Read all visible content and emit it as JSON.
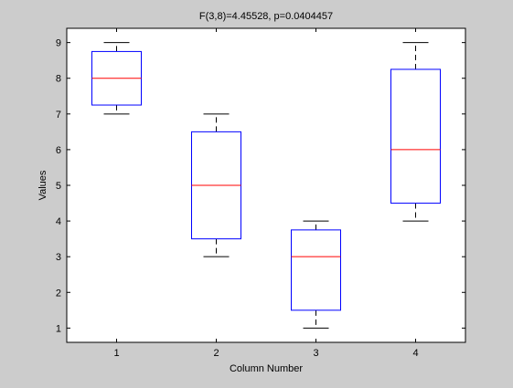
{
  "figure": {
    "background_color": "#cccccc"
  },
  "chart_data": {
    "type": "box",
    "title": "F(3,8)=4.45528, p=0.0404457",
    "xlabel": "Column Number",
    "ylabel": "Values",
    "xlim": [
      0.5,
      4.5
    ],
    "ylim": [
      0.6,
      9.4
    ],
    "xticks": [
      1,
      2,
      3,
      4
    ],
    "yticks": [
      1,
      2,
      3,
      4,
      5,
      6,
      7,
      8,
      9
    ],
    "grid": false,
    "colors": {
      "axes_background": "#ffffff",
      "box": "#0000ff",
      "median": "#ff0000",
      "whisker": "#000000"
    },
    "boxes": [
      {
        "category": "1",
        "min": 7,
        "q1": 7.25,
        "median": 8,
        "q3": 8.75,
        "max": 9
      },
      {
        "category": "2",
        "min": 3,
        "q1": 3.5,
        "median": 5,
        "q3": 6.5,
        "max": 7
      },
      {
        "category": "3",
        "min": 1,
        "q1": 1.5,
        "median": 3,
        "q3": 3.75,
        "max": 4
      },
      {
        "category": "4",
        "min": 4,
        "q1": 4.5,
        "median": 6,
        "q3": 8.25,
        "max": 9
      }
    ]
  }
}
